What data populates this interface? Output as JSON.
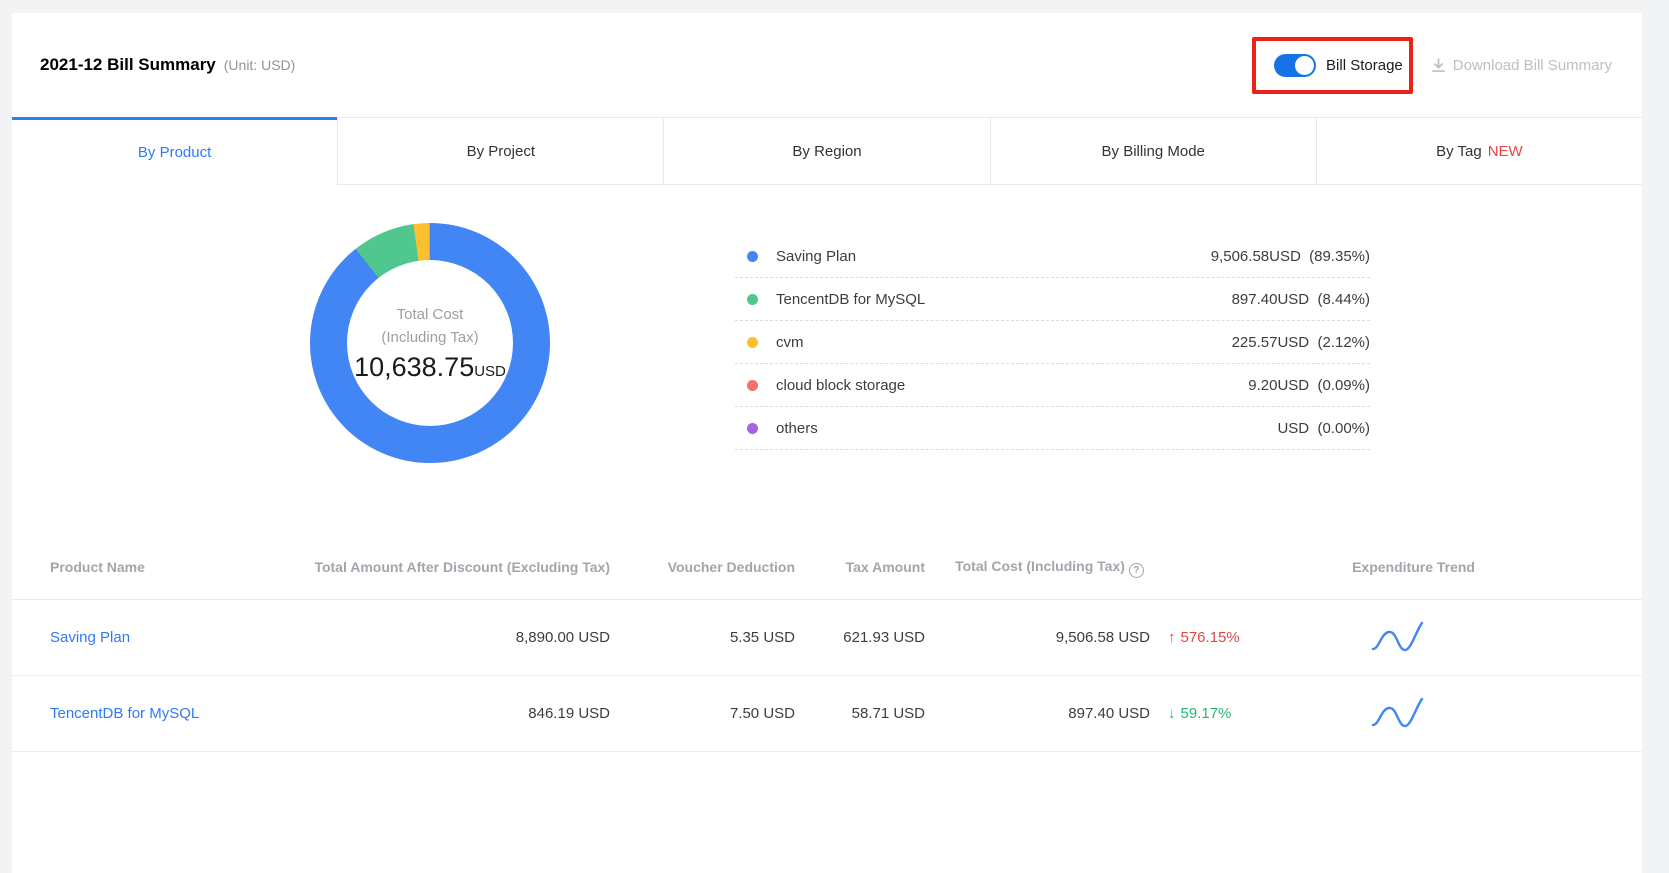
{
  "header": {
    "title": "2021-12 Bill Summary",
    "unit": "(Unit: USD)",
    "bill_storage_label": "Bill Storage",
    "bill_storage_on": true,
    "download_label": "Download Bill Summary"
  },
  "tabs": [
    {
      "label": "By Product",
      "active": true
    },
    {
      "label": "By Project",
      "active": false
    },
    {
      "label": "By Region",
      "active": false
    },
    {
      "label": "By Billing Mode",
      "active": false
    },
    {
      "label": "By Tag",
      "badge": "NEW",
      "active": false
    }
  ],
  "chart_data": {
    "type": "pie",
    "style": "donut",
    "center_label_line1": "Total Cost",
    "center_label_line2": "(Including Tax)",
    "center_value": "10,638.75",
    "center_unit": "USD",
    "legend_position": "right",
    "series": [
      {
        "name": "Saving Plan",
        "value": 9506.58,
        "display": "9,506.58USD",
        "percent": "89.35%",
        "color": "#4285f4"
      },
      {
        "name": "TencentDB for MySQL",
        "value": 897.4,
        "display": "897.40USD",
        "percent": "8.44%",
        "color": "#50c78e"
      },
      {
        "name": "cvm",
        "value": 225.57,
        "display": "225.57USD",
        "percent": "2.12%",
        "color": "#fcc02e"
      },
      {
        "name": "cloud block storage",
        "value": 9.2,
        "display": "9.20USD",
        "percent": "0.09%",
        "color": "#f5716b"
      },
      {
        "name": "others",
        "value": 0,
        "display": "USD",
        "percent": "0.00%",
        "color": "#a563e0"
      }
    ]
  },
  "table": {
    "columns": [
      "Product Name",
      "Total Amount After Discount (Excluding Tax)",
      "Voucher Deduction",
      "Tax Amount",
      "Total Cost (Including Tax)",
      "Expenditure Trend"
    ],
    "rows": [
      {
        "product": "Saving Plan",
        "amount_after_discount": "8,890.00 USD",
        "voucher": "5.35 USD",
        "tax": "621.93 USD",
        "total": "9,506.58 USD",
        "trend_dir": "up",
        "trend_pct": "576.15%"
      },
      {
        "product": "TencentDB for MySQL",
        "amount_after_discount": "846.19 USD",
        "voucher": "7.50 USD",
        "tax": "58.71 USD",
        "total": "897.40 USD",
        "trend_dir": "down",
        "trend_pct": "59.17%"
      }
    ]
  }
}
